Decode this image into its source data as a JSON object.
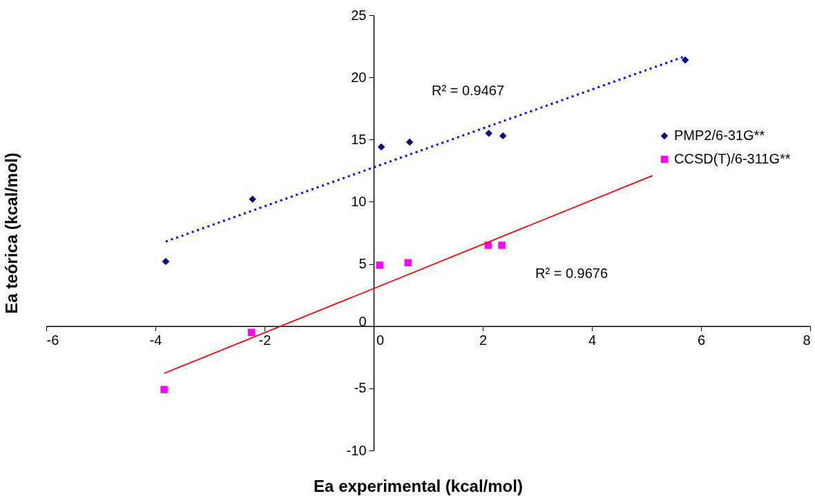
{
  "chart_data": {
    "type": "scatter",
    "xlabel": "Ea experimental (kcal/mol)",
    "ylabel": "Ea teórica (kcal/mol)",
    "xlim": [
      -6,
      8
    ],
    "xticks": [
      -6,
      -4,
      -2,
      0,
      2,
      4,
      6,
      8
    ],
    "ylim": [
      -10,
      25
    ],
    "yticks": [
      -10,
      -5,
      0,
      5,
      10,
      15,
      20,
      25
    ],
    "grid": false,
    "legend": "right",
    "annotations": [
      "R² = 0.9467",
      "R² = 0.9676"
    ],
    "series": [
      {
        "name": "PMP2/6-31G**",
        "marker": "diamond",
        "color": "#000080",
        "x": [
          -3.81,
          -2.22,
          0.14,
          0.66,
          2.11,
          2.37,
          5.71
        ],
        "values": [
          5.2,
          10.2,
          14.4,
          14.8,
          15.5,
          15.3,
          21.4
        ]
      },
      {
        "name": "CCSD(T)/6-311G**",
        "marker": "square",
        "color": "#ff00ff",
        "x": [
          -3.84,
          -2.24,
          0.11,
          0.63,
          2.1,
          2.35
        ],
        "values": [
          -5.1,
          -0.5,
          4.9,
          5.1,
          6.5,
          6.5
        ]
      },
      {
        "type": "line",
        "color": "#0000ff",
        "line_style": "dotted",
        "x": [
          -3.81,
          5.71
        ],
        "values": [
          6.8,
          21.7
        ]
      },
      {
        "type": "line",
        "color": "#ff0000",
        "line_style": "solid",
        "x": [
          -3.84,
          5.11
        ],
        "values": [
          -3.8,
          12.1
        ]
      }
    ]
  }
}
